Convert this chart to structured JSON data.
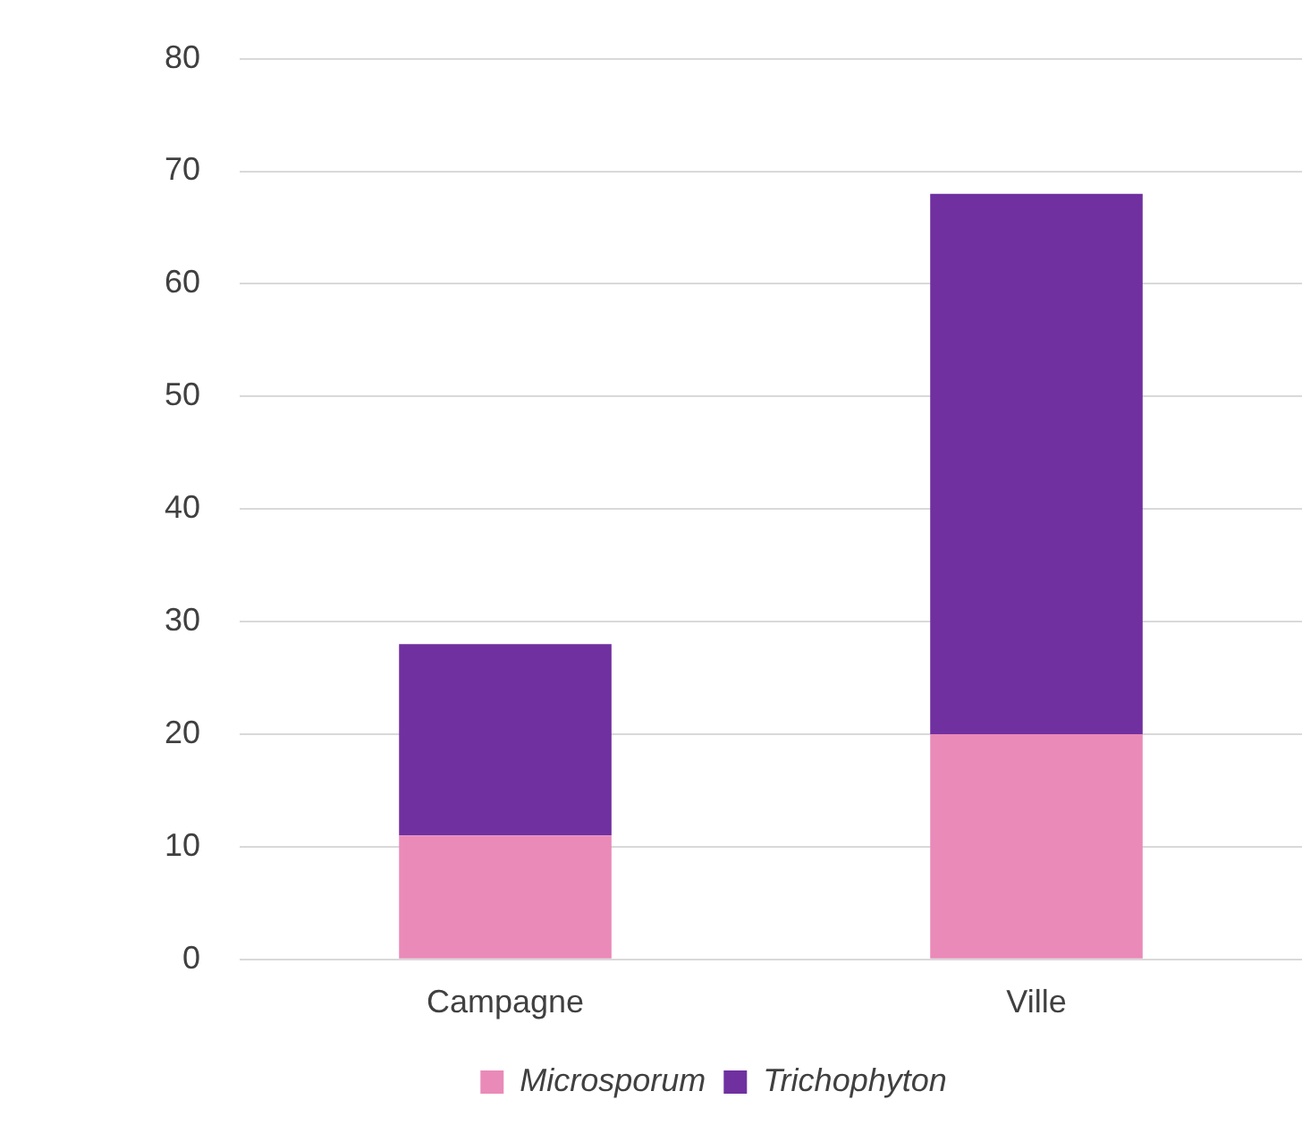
{
  "chart_data": {
    "type": "bar",
    "stacked": true,
    "categories": [
      "Campagne",
      "Ville"
    ],
    "series": [
      {
        "name": "Microsporum",
        "color": "#ea8ab8",
        "values": [
          11,
          20
        ]
      },
      {
        "name": "Trichophyton",
        "color": "#7030a0",
        "values": [
          17,
          48
        ]
      }
    ],
    "ylim": [
      0,
      80
    ],
    "yticks": [
      0,
      10,
      20,
      30,
      40,
      50,
      60,
      70,
      80
    ],
    "grid": "y",
    "legend": "bottom"
  }
}
